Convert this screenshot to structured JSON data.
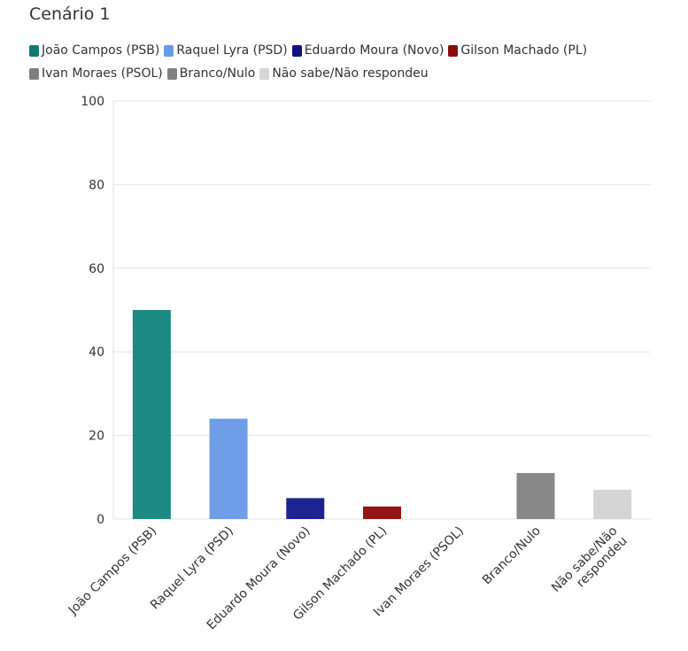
{
  "chart_data": {
    "type": "bar",
    "title": "Cenário 1",
    "xlabel": "",
    "ylabel": "",
    "ylim": [
      0,
      100
    ],
    "yticks": [
      0,
      20,
      40,
      60,
      80,
      100
    ],
    "grid": true,
    "legend_position": "top",
    "categories": [
      "João Campos (PSB)",
      "Raquel Lyra (PSD)",
      "Eduardo Moura (Novo)",
      "Gilson Machado (PL)",
      "Ivan Moraes (PSOL)",
      "Branco/Nulo",
      "Não sabe/Não respondeu"
    ],
    "category_tick_lines": [
      [
        "João Campos (PSB)"
      ],
      [
        "Raquel Lyra (PSD)"
      ],
      [
        "Eduardo Moura (Novo)"
      ],
      [
        "Gilson Machado (PL)"
      ],
      [
        "Ivan Moraes (PSOL)"
      ],
      [
        "Branco/Nulo"
      ],
      [
        "Não sabe/Não",
        "respondeu"
      ]
    ],
    "values": [
      50,
      24,
      5,
      3,
      0,
      11,
      7
    ],
    "colors": [
      "#1a8a83",
      "#6f9de8",
      "#1c2393",
      "#951313",
      "#808080",
      "#888888",
      "#d4d4d4"
    ],
    "legend": [
      {
        "label": "João Campos (PSB)",
        "color": "#0e7a72"
      },
      {
        "label": "Raquel Lyra (PSD)",
        "color": "#6a9be8"
      },
      {
        "label": "Eduardo Moura (Novo)",
        "color": "#10137e"
      },
      {
        "label": "Gilson Machado (PL)",
        "color": "#8b0a0a"
      },
      {
        "label": "Ivan Moraes (PSOL)",
        "color": "#7f7f7f"
      },
      {
        "label": "Branco/Nulo",
        "color": "#808080"
      },
      {
        "label": "Não sabe/Não respondeu",
        "color": "#d6d6d6"
      }
    ]
  }
}
